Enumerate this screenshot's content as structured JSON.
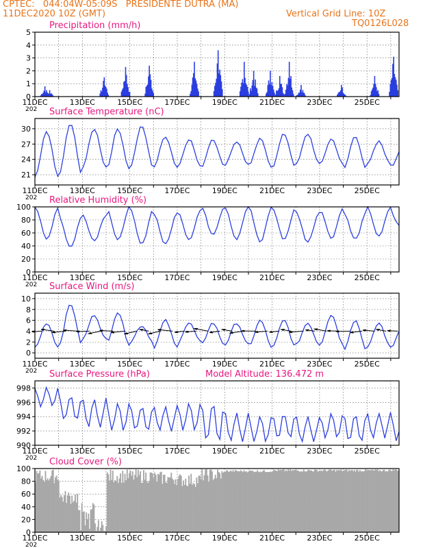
{
  "header": {
    "line1": "CPTEC:   044:04W-05:09S   PRESIDENTE DUTRA (MA)",
    "line2_left": "11DEC2020 10Z (GMT)",
    "line2_right": "Vertical Grid Line: 10Z",
    "code": "TQ0126L028"
  },
  "colors": {
    "header": "#e8741a",
    "title": "#e8177f",
    "series": "#2a3ee0",
    "cloud": "#a8a8a8",
    "wind_arrow": "#000000"
  },
  "x_axis": {
    "ticks": [
      "11DEC",
      "13DEC",
      "15DEC",
      "17DEC",
      "19DEC",
      "21DEC",
      "23DEC",
      "25DEC"
    ],
    "cut_label": "202"
  },
  "chart_data": [
    {
      "type": "bar",
      "title": "Precipitation (mm/h)",
      "ylim": [
        0,
        5
      ],
      "yticks": [
        0,
        1,
        2,
        3,
        4,
        5
      ],
      "x_range_days": [
        0,
        15.4
      ],
      "bursts": [
        {
          "day": 0.4,
          "peak": 0.8
        },
        {
          "day": 0.6,
          "peak": 0.5
        },
        {
          "day": 2.9,
          "peak": 1.5
        },
        {
          "day": 3.8,
          "peak": 2.3
        },
        {
          "day": 4.8,
          "peak": 2.4
        },
        {
          "day": 6.7,
          "peak": 2.7
        },
        {
          "day": 7.7,
          "peak": 3.6
        },
        {
          "day": 8.8,
          "peak": 2.7
        },
        {
          "day": 9.2,
          "peak": 2.0
        },
        {
          "day": 9.9,
          "peak": 2.0
        },
        {
          "day": 10.3,
          "peak": 1.6
        },
        {
          "day": 10.7,
          "peak": 2.7
        },
        {
          "day": 11.2,
          "peak": 0.9
        },
        {
          "day": 12.9,
          "peak": 0.9
        },
        {
          "day": 14.3,
          "peak": 1.6
        },
        {
          "day": 15.1,
          "peak": 3.1
        }
      ]
    },
    {
      "type": "line",
      "title": "Surface Temperature (nC)",
      "ylim": [
        19,
        32
      ],
      "yticks": [
        21,
        24,
        27,
        30
      ],
      "daily_min": [
        20.5,
        21.0,
        22.5,
        22.0,
        22.5,
        22.5,
        22.5,
        22.5,
        23.0,
        22.5,
        22.5,
        23.0,
        23.0,
        22.0,
        23.0,
        22.5
      ],
      "daily_max": [
        29.5,
        31.0,
        30.0,
        30.0,
        30.5,
        28.5,
        28.0,
        28.0,
        27.5,
        28.0,
        29.0,
        29.0,
        28.0,
        28.5,
        27.5,
        26.5
      ]
    },
    {
      "type": "line",
      "title": "Relative Humidity (%)",
      "ylim": [
        0,
        100
      ],
      "yticks": [
        0,
        20,
        40,
        60,
        80,
        100
      ],
      "daily_min": [
        50,
        38,
        48,
        48,
        42,
        42,
        50,
        58,
        50,
        46,
        50,
        46,
        52,
        50,
        54,
        66
      ],
      "daily_max": [
        100,
        85,
        88,
        100,
        96,
        90,
        95,
        100,
        100,
        100,
        98,
        92,
        98,
        92,
        100,
        88
      ]
    },
    {
      "type": "line",
      "title": "Surface Wind (m/s)",
      "ylim": [
        -1,
        11
      ],
      "yticks": [
        0,
        2,
        4,
        6,
        8,
        10
      ],
      "daily_min": [
        1.0,
        1.5,
        2.5,
        1.5,
        2.0,
        1.0,
        2.0,
        1.5,
        1.5,
        1.0,
        1.0,
        1.5,
        1.5,
        0.5,
        1.0,
        1.0
      ],
      "daily_max": [
        5.5,
        9.0,
        7.0,
        7.5,
        5.0,
        6.0,
        5.5,
        5.5,
        5.5,
        6.0,
        6.0,
        5.5,
        7.0,
        6.0,
        5.5,
        5.0
      ],
      "arrows_every_days": 0.5
    },
    {
      "type": "line",
      "title": "Surface Pressure (hPa)",
      "annotation": "Model Altitude: 136.472 m",
      "ylim": [
        990,
        999
      ],
      "yticks": [
        990,
        992,
        994,
        996,
        998
      ],
      "daily_min": [
        995.5,
        993.5,
        992.5,
        992.0,
        992.0,
        992.0,
        992.0,
        990.5,
        990.5,
        990.5,
        991.0,
        990.5,
        991.0,
        990.5,
        991.0,
        990.5
      ],
      "daily_max": [
        998.0,
        997.0,
        996.5,
        996.0,
        995.5,
        995.5,
        996.0,
        996.0,
        994.5,
        994.0,
        994.5,
        994.0,
        994.5,
        994.5,
        994.5,
        994.5
      ]
    },
    {
      "type": "bar",
      "title": "Cloud Cover (%)",
      "ylim": [
        0,
        100
      ],
      "yticks": [
        0,
        20,
        40,
        60,
        80,
        100
      ],
      "daily_level": [
        88,
        55,
        8,
        88,
        88,
        85,
        82,
        90,
        96,
        96,
        97,
        97,
        97,
        97,
        97,
        98
      ]
    }
  ]
}
